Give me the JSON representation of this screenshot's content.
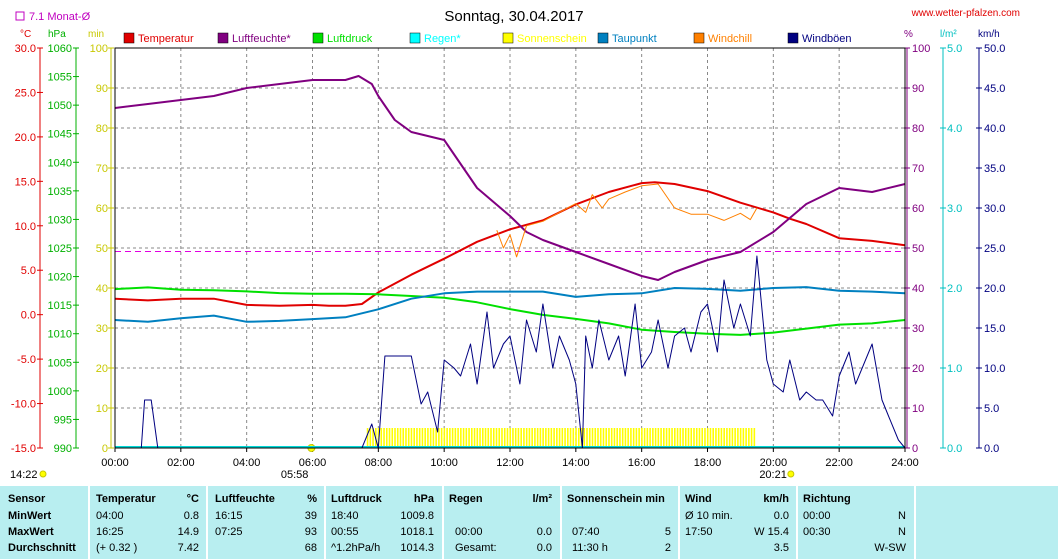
{
  "header": {
    "title": "Sonntag, 30.04.2017",
    "site": "www.wetter-pfalzen.com",
    "monthly_avg_label": "7.1 Monat-Ø",
    "sunrise": "05:58",
    "sunset": "20:21",
    "now_time": "14:22"
  },
  "axis_units": {
    "temp": "°C",
    "pressure": "hPa",
    "sun": "min",
    "humidity": "%",
    "rain": "l/m²",
    "wind": "km/h"
  },
  "legend": [
    {
      "label": "Temperatur",
      "color": "#e00000"
    },
    {
      "label": "Luftfeuchte*",
      "color": "#800080"
    },
    {
      "label": "Luftdruck",
      "color": "#00e000"
    },
    {
      "label": "Regen*",
      "color": "#00ffff"
    },
    {
      "label": "Sonnenschein",
      "color": "#ffff00"
    },
    {
      "label": "Taupunkt",
      "color": "#0080c0"
    },
    {
      "label": "Windchill",
      "color": "#ff8000"
    },
    {
      "label": "Windböen",
      "color": "#000080"
    }
  ],
  "chart_data": {
    "type": "line",
    "x_ticks": [
      "00:00",
      "02:00",
      "04:00",
      "06:00",
      "08:00",
      "10:00",
      "12:00",
      "14:00",
      "16:00",
      "18:00",
      "20:00",
      "22:00",
      "24:00"
    ],
    "y_axes": {
      "temp": {
        "min": -15,
        "max": 30,
        "ticks": [
          "-15.0",
          "-10.0",
          "-5.0",
          "0.0",
          "5.0",
          "10.0",
          "15.0",
          "20.0",
          "25.0",
          "30.0"
        ]
      },
      "pressure": {
        "min": 990,
        "max": 1060,
        "ticks": [
          "990",
          "995",
          "1000",
          "1005",
          "1010",
          "1015",
          "1020",
          "1025",
          "1030",
          "1035",
          "1040",
          "1045",
          "1050",
          "1055",
          "1060"
        ]
      },
      "sun": {
        "min": 0,
        "max": 100,
        "ticks": [
          "0",
          "10",
          "20",
          "30",
          "40",
          "50",
          "60",
          "70",
          "80",
          "90",
          "100"
        ]
      },
      "humidity": {
        "min": 0,
        "max": 100,
        "ticks": [
          "0",
          "10",
          "20",
          "30",
          "40",
          "50",
          "60",
          "70",
          "80",
          "90",
          "100"
        ]
      },
      "rain": {
        "min": 0,
        "max": 5,
        "ticks": [
          "0.0",
          "1.0",
          "2.0",
          "3.0",
          "4.0",
          "5.0"
        ]
      },
      "wind": {
        "min": 0,
        "max": 50,
        "ticks": [
          "0.0",
          "5.0",
          "10.0",
          "15.0",
          "20.0",
          "25.0",
          "30.0",
          "35.0",
          "40.0",
          "45.0",
          "50.0"
        ]
      }
    },
    "monthly_avg_temp": 7.1,
    "series": [
      {
        "name": "Temperatur",
        "axis": "temp",
        "color": "#e00000",
        "x": [
          0,
          1,
          2,
          3,
          4,
          5,
          6,
          6.5,
          7,
          7.5,
          8,
          9,
          10,
          11,
          12,
          13,
          14,
          15,
          16,
          16.4,
          17,
          18,
          19,
          20,
          20.5,
          21,
          22,
          23,
          24
        ],
        "y": [
          1.8,
          1.6,
          1.8,
          1.8,
          1.1,
          1.0,
          1.1,
          1.0,
          1.0,
          1.2,
          2.5,
          4.5,
          6.3,
          8.2,
          9.6,
          10.6,
          12.4,
          13.8,
          14.8,
          14.9,
          14.7,
          13.9,
          12.6,
          11.5,
          10.8,
          10.2,
          8.6,
          8.3,
          7.8
        ]
      },
      {
        "name": "Luftfeuchte*",
        "axis": "humidity",
        "color": "#800080",
        "x": [
          0,
          1,
          2,
          3,
          4,
          5,
          6,
          7,
          7.4,
          7.8,
          8,
          8.5,
          9,
          10,
          11,
          12,
          12.5,
          13,
          14,
          15,
          16,
          16.5,
          17,
          18,
          19,
          20,
          21,
          22,
          23,
          24
        ],
        "y": [
          85,
          86,
          87,
          88,
          90,
          91,
          92,
          92,
          93,
          91,
          88,
          82,
          79,
          77,
          65,
          58,
          54,
          52,
          49,
          46,
          43,
          42,
          44,
          47,
          49,
          54,
          61,
          65,
          64,
          66
        ]
      },
      {
        "name": "Luftdruck",
        "axis": "pressure",
        "color": "#00e000",
        "x": [
          0,
          1,
          2,
          3,
          4,
          5,
          6,
          7,
          8,
          9,
          10,
          11,
          12,
          13,
          14,
          15,
          16,
          17,
          18,
          19,
          20,
          21,
          22,
          23,
          24
        ],
        "y": [
          1017.8,
          1018.1,
          1017.7,
          1017.6,
          1017.4,
          1017.1,
          1017.0,
          1017.0,
          1016.9,
          1016.6,
          1016.3,
          1015.5,
          1014.3,
          1013.3,
          1012.6,
          1011.8,
          1010.7,
          1010.3,
          1010.0,
          1009.8,
          1010.2,
          1010.9,
          1011.6,
          1011.8,
          1012.4
        ]
      },
      {
        "name": "Taupunkt",
        "axis": "temp",
        "color": "#0080c0",
        "x": [
          0,
          1,
          2,
          3,
          4,
          5,
          6,
          7,
          8,
          9,
          10,
          11,
          12,
          13,
          14,
          15,
          16,
          17,
          18,
          19,
          20,
          21,
          22,
          23,
          24
        ],
        "y": [
          -0.6,
          -0.8,
          -0.4,
          -0.1,
          -0.8,
          -0.7,
          -0.5,
          -0.3,
          0.6,
          1.8,
          2.4,
          2.6,
          2.6,
          2.6,
          2.0,
          2.3,
          2.4,
          3.0,
          2.9,
          2.7,
          3.0,
          3.1,
          2.7,
          2.6,
          2.4
        ]
      },
      {
        "name": "Windchill",
        "axis": "temp",
        "color": "#ff8000",
        "x": [
          11.6,
          11.8,
          12,
          12.2,
          12.5,
          13,
          14,
          14.3,
          14.5,
          14.8,
          15,
          15.5,
          16,
          16.5,
          17,
          17.5,
          18,
          18.5,
          19,
          19.3,
          19.5
        ],
        "y": [
          9.5,
          7.5,
          9.0,
          6.5,
          10,
          10.5,
          12.5,
          11.5,
          13.5,
          12,
          13,
          13.8,
          14.5,
          14.7,
          12.0,
          11.3,
          11.3,
          10.6,
          11.4,
          10.7,
          12.0
        ]
      },
      {
        "name": "Windböen",
        "axis": "wind",
        "color": "#000080",
        "x": [
          0.8,
          0.9,
          1.1,
          1.3,
          7.5,
          7.8,
          8.0,
          8.2,
          8.5,
          9.0,
          9.3,
          9.5,
          9.8,
          10.0,
          10.3,
          10.5,
          10.8,
          11.0,
          11.3,
          11.5,
          11.8,
          12.0,
          12.3,
          12.5,
          12.8,
          13.0,
          13.3,
          13.5,
          13.8,
          14.0,
          14.2,
          14.3,
          14.5,
          14.7,
          15.0,
          15.3,
          15.5,
          15.8,
          16.0,
          16.3,
          16.5,
          16.8,
          17.0,
          17.3,
          17.5,
          17.8,
          18.0,
          18.3,
          18.5,
          18.8,
          19.0,
          19.3,
          19.5,
          19.8,
          20.0,
          20.3,
          20.5,
          20.8,
          21.0,
          21.3,
          21.5,
          21.8,
          22.0,
          22.3,
          22.5,
          22.8,
          23.0,
          23.3,
          23.5,
          23.8,
          24.0
        ],
        "y": [
          0,
          6,
          6,
          0,
          0,
          3,
          0,
          11.5,
          11.5,
          11.5,
          5.5,
          7,
          2,
          11,
          10,
          9,
          13,
          8,
          17,
          10,
          13,
          14,
          8,
          16,
          12,
          18,
          10,
          14,
          11,
          8,
          0,
          14,
          10,
          16,
          11,
          14,
          9,
          18,
          10,
          12,
          16,
          10,
          14,
          15,
          12,
          17,
          18,
          12,
          21,
          15,
          18,
          14,
          24,
          11,
          8,
          7,
          11,
          6,
          7,
          6,
          6,
          4,
          9,
          12,
          8,
          11,
          13,
          6,
          4,
          1,
          0
        ]
      }
    ],
    "sunshine_hours_range": [
      7.67,
      19.45
    ],
    "sunshine_value": 5
  },
  "stats": {
    "headers": [
      {
        "name": "Sensor"
      },
      {
        "name": "Temperatur",
        "unit": "°C"
      },
      {
        "name": "Luftfeuchte",
        "unit": "%"
      },
      {
        "name": "Luftdruck",
        "unit": "hPa"
      },
      {
        "name": "Regen",
        "unit": "l/m²"
      },
      {
        "name": "Sonnenschein min"
      },
      {
        "name": "Wind",
        "unit": "km/h"
      },
      {
        "name": "Richtung"
      }
    ],
    "rows": [
      {
        "label": "MinWert",
        "temp_time": "04:00",
        "temp_val": "0.8",
        "hum_time": "16:15",
        "hum_val": "39",
        "press_time": "18:40",
        "press_val": "1009.8",
        "rain_time": "",
        "rain_val": "",
        "sun_time": "",
        "sun_val": "",
        "wind_time": "Ø 10 min.",
        "wind_val": "0.0",
        "dir_time": "00:00",
        "dir_val": "N"
      },
      {
        "label": "MaxWert",
        "temp_time": "16:25",
        "temp_val": "14.9",
        "hum_time": "07:25",
        "hum_val": "93",
        "press_time": "00:55",
        "press_val": "1018.1",
        "rain_time": "00:00",
        "rain_val": "0.0",
        "sun_time": "07:40",
        "sun_val": "5",
        "wind_time": "17:50",
        "wind_val": "W 15.4",
        "dir_time": "00:30",
        "dir_val": "N"
      },
      {
        "label": "Durchschnitt",
        "temp_time": "(+ 0.32 )",
        "temp_val": "7.42",
        "hum_time": "",
        "hum_val": "68",
        "press_time": "^1.2hPa/h",
        "press_val": "1014.3",
        "rain_time": "Gesamt:",
        "rain_val": "0.0",
        "sun_time": "11:30 h",
        "sun_val": "2",
        "wind_time": "",
        "wind_val": "3.5",
        "dir_time": "",
        "dir_val": "W-SW"
      }
    ]
  }
}
